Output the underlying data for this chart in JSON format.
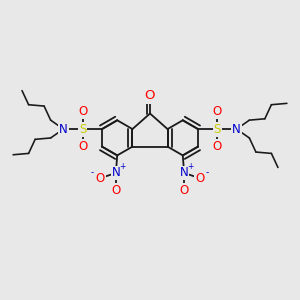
{
  "background_color": "#e8e8e8",
  "bond_color": "#1a1a1a",
  "bond_lw": 1.3,
  "atom_colors": {
    "O": "#ff0000",
    "N": "#0000cc",
    "S": "#cccc00",
    "C": "#1a1a1a"
  },
  "font_size_atom": 8.5,
  "title": ""
}
